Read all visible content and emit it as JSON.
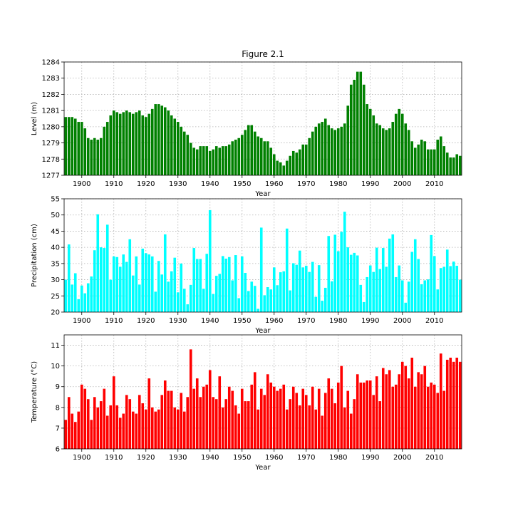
{
  "figure_title": "Figure 2.1",
  "chart_data": [
    {
      "type": "bar",
      "title": "Figure 2.1",
      "xlabel": "Year",
      "ylabel": "Level (m)",
      "color": "#008000",
      "xlim": [
        1895,
        2018
      ],
      "ylim": [
        1277,
        1284
      ],
      "xticks": [
        1900,
        1910,
        1920,
        1930,
        1940,
        1950,
        1960,
        1970,
        1980,
        1990,
        2000,
        2010
      ],
      "yticks": [
        1277,
        1278,
        1279,
        1280,
        1281,
        1282,
        1283,
        1284
      ],
      "grid": true,
      "x": [
        1895,
        1896,
        1897,
        1898,
        1899,
        1900,
        1901,
        1902,
        1903,
        1904,
        1905,
        1906,
        1907,
        1908,
        1909,
        1910,
        1911,
        1912,
        1913,
        1914,
        1915,
        1916,
        1917,
        1918,
        1919,
        1920,
        1921,
        1922,
        1923,
        1924,
        1925,
        1926,
        1927,
        1928,
        1929,
        1930,
        1931,
        1932,
        1933,
        1934,
        1935,
        1936,
        1937,
        1938,
        1939,
        1940,
        1941,
        1942,
        1943,
        1944,
        1945,
        1946,
        1947,
        1948,
        1949,
        1950,
        1951,
        1952,
        1953,
        1954,
        1955,
        1956,
        1957,
        1958,
        1959,
        1960,
        1961,
        1962,
        1963,
        1964,
        1965,
        1966,
        1967,
        1968,
        1969,
        1970,
        1971,
        1972,
        1973,
        1974,
        1975,
        1976,
        1977,
        1978,
        1979,
        1980,
        1981,
        1982,
        1983,
        1984,
        1985,
        1986,
        1987,
        1988,
        1989,
        1990,
        1991,
        1992,
        1993,
        1994,
        1995,
        1996,
        1997,
        1998,
        1999,
        2000,
        2001,
        2002,
        2003,
        2004,
        2005,
        2006,
        2007,
        2008,
        2009,
        2010,
        2011,
        2012,
        2013,
        2014,
        2015,
        2016,
        2017,
        2018
      ],
      "values": [
        1280.6,
        1280.6,
        1280.6,
        1280.5,
        1280.3,
        1280.3,
        1279.9,
        1279.3,
        1279.2,
        1279.3,
        1279.2,
        1279.3,
        1280.0,
        1280.3,
        1280.7,
        1281.0,
        1280.9,
        1280.8,
        1280.9,
        1281.0,
        1280.9,
        1280.8,
        1280.9,
        1281.0,
        1280.7,
        1280.6,
        1280.8,
        1281.1,
        1281.4,
        1281.4,
        1281.3,
        1281.2,
        1281.0,
        1280.7,
        1280.5,
        1280.3,
        1280.0,
        1279.7,
        1279.5,
        1279.0,
        1278.7,
        1278.6,
        1278.8,
        1278.8,
        1278.8,
        1278.5,
        1278.6,
        1278.8,
        1278.7,
        1278.8,
        1278.8,
        1278.9,
        1279.1,
        1279.2,
        1279.3,
        1279.5,
        1279.8,
        1280.1,
        1280.1,
        1279.7,
        1279.4,
        1279.3,
        1279.1,
        1279.1,
        1278.7,
        1278.3,
        1277.9,
        1277.8,
        1277.6,
        1277.9,
        1278.2,
        1278.5,
        1278.4,
        1278.6,
        1278.9,
        1278.9,
        1279.3,
        1279.7,
        1280.0,
        1280.2,
        1280.3,
        1280.5,
        1280.1,
        1279.9,
        1279.8,
        1279.9,
        1280.0,
        1280.2,
        1281.3,
        1282.6,
        1282.9,
        1283.4,
        1283.4,
        1282.6,
        1281.4,
        1281.1,
        1280.7,
        1280.2,
        1280.1,
        1279.9,
        1279.8,
        1279.9,
        1280.3,
        1280.8,
        1281.1,
        1280.8,
        1280.2,
        1279.8,
        1279.1,
        1278.7,
        1278.9,
        1279.2,
        1279.1,
        1278.6,
        1278.6,
        1278.6,
        1279.2,
        1279.4,
        1278.8,
        1278.4,
        1278.1,
        1278.1,
        1278.3,
        1278.2
      ]
    },
    {
      "type": "bar",
      "title": "",
      "xlabel": "Year",
      "ylabel": "Precipitation (cm)",
      "color": "#00ffff",
      "xlim": [
        1895,
        2018
      ],
      "ylim": [
        20,
        55
      ],
      "xticks": [
        1900,
        1910,
        1920,
        1930,
        1940,
        1950,
        1960,
        1970,
        1980,
        1990,
        2000,
        2010
      ],
      "yticks": [
        20,
        25,
        30,
        35,
        40,
        45,
        50,
        55
      ],
      "grid": true,
      "x": [
        1895,
        1896,
        1897,
        1898,
        1899,
        1900,
        1901,
        1902,
        1903,
        1904,
        1905,
        1906,
        1907,
        1908,
        1909,
        1910,
        1911,
        1912,
        1913,
        1914,
        1915,
        1916,
        1917,
        1918,
        1919,
        1920,
        1921,
        1922,
        1923,
        1924,
        1925,
        1926,
        1927,
        1928,
        1929,
        1930,
        1931,
        1932,
        1933,
        1934,
        1935,
        1936,
        1937,
        1938,
        1939,
        1940,
        1941,
        1942,
        1943,
        1944,
        1945,
        1946,
        1947,
        1948,
        1949,
        1950,
        1951,
        1952,
        1953,
        1954,
        1955,
        1956,
        1957,
        1958,
        1959,
        1960,
        1961,
        1962,
        1963,
        1964,
        1965,
        1966,
        1967,
        1968,
        1969,
        1970,
        1971,
        1972,
        1973,
        1974,
        1975,
        1976,
        1977,
        1978,
        1979,
        1980,
        1981,
        1982,
        1983,
        1984,
        1985,
        1986,
        1987,
        1988,
        1989,
        1990,
        1991,
        1992,
        1993,
        1994,
        1995,
        1996,
        1997,
        1998,
        1999,
        2000,
        2001,
        2002,
        2003,
        2004,
        2005,
        2006,
        2007,
        2008,
        2009,
        2010,
        2011,
        2012,
        2013,
        2014,
        2015,
        2016,
        2017,
        2018
      ],
      "values": [
        30.0,
        40.9,
        28.5,
        32.0,
        24.0,
        28.2,
        25.8,
        28.9,
        31.0,
        39.1,
        50.2,
        40.0,
        39.8,
        47.0,
        30.0,
        37.2,
        37.0,
        34.0,
        37.8,
        35.5,
        42.5,
        31.3,
        37.2,
        28.5,
        39.6,
        38.2,
        37.8,
        37.2,
        26.3,
        35.8,
        31.6,
        44.0,
        29.4,
        32.6,
        36.8,
        26.1,
        35.0,
        27.2,
        22.4,
        28.4,
        39.8,
        36.4,
        36.4,
        27.2,
        38.0,
        51.5,
        25.6,
        31.2,
        31.8,
        37.3,
        36.5,
        37.0,
        29.8,
        37.6,
        24.3,
        37.2,
        32.1,
        26.5,
        29.4,
        28.1,
        21.0,
        46.1,
        25.2,
        27.7,
        27.0,
        33.8,
        28.3,
        32.3,
        32.6,
        45.8,
        26.7,
        35.1,
        34.6,
        39.0,
        33.8,
        34.3,
        32.4,
        35.5,
        24.7,
        34.5,
        23.5,
        27.5,
        43.5,
        29.5,
        43.9,
        38.8,
        44.8,
        51.0,
        40.0,
        37.7,
        38.3,
        37.5,
        28.4,
        23.1,
        30.8,
        34.4,
        32.4,
        39.9,
        33.3,
        39.8,
        34.0,
        42.7,
        44.0,
        30.8,
        34.4,
        29.8,
        22.9,
        29.4,
        38.6,
        42.5,
        36.4,
        28.6,
        29.8,
        30.1,
        43.8,
        37.3,
        27.0,
        33.6,
        34.0,
        39.3,
        34.2,
        35.6,
        34.3,
        30.0
      ]
    },
    {
      "type": "bar",
      "title": "",
      "xlabel": "Year",
      "ylabel": "Temperature (°C)",
      "color": "#ff0000",
      "xlim": [
        1895,
        2018
      ],
      "ylim": [
        6,
        11.5
      ],
      "xticks": [
        1900,
        1910,
        1920,
        1930,
        1940,
        1950,
        1960,
        1970,
        1980,
        1990,
        2000,
        2010
      ],
      "yticks": [
        6,
        7,
        8,
        9,
        10,
        11
      ],
      "grid": true,
      "x": [
        1895,
        1896,
        1897,
        1898,
        1899,
        1900,
        1901,
        1902,
        1903,
        1904,
        1905,
        1906,
        1907,
        1908,
        1909,
        1910,
        1911,
        1912,
        1913,
        1914,
        1915,
        1916,
        1917,
        1918,
        1919,
        1920,
        1921,
        1922,
        1923,
        1924,
        1925,
        1926,
        1927,
        1928,
        1929,
        1930,
        1931,
        1932,
        1933,
        1934,
        1935,
        1936,
        1937,
        1938,
        1939,
        1940,
        1941,
        1942,
        1943,
        1944,
        1945,
        1946,
        1947,
        1948,
        1949,
        1950,
        1951,
        1952,
        1953,
        1954,
        1955,
        1956,
        1957,
        1958,
        1959,
        1960,
        1961,
        1962,
        1963,
        1964,
        1965,
        1966,
        1967,
        1968,
        1969,
        1970,
        1971,
        1972,
        1973,
        1974,
        1975,
        1976,
        1977,
        1978,
        1979,
        1980,
        1981,
        1982,
        1983,
        1984,
        1985,
        1986,
        1987,
        1988,
        1989,
        1990,
        1991,
        1992,
        1993,
        1994,
        1995,
        1996,
        1997,
        1998,
        1999,
        2000,
        2001,
        2002,
        2003,
        2004,
        2005,
        2006,
        2007,
        2008,
        2009,
        2010,
        2011,
        2012,
        2013,
        2014,
        2015,
        2016,
        2017,
        2018
      ],
      "values": [
        7.4,
        8.5,
        7.7,
        7.3,
        7.8,
        9.1,
        8.9,
        8.4,
        7.4,
        8.5,
        8.0,
        8.3,
        8.9,
        7.6,
        8.1,
        9.5,
        8.1,
        7.5,
        7.7,
        8.6,
        8.4,
        7.8,
        7.7,
        8.6,
        8.2,
        7.9,
        9.4,
        8.0,
        7.8,
        7.9,
        8.6,
        9.3,
        8.8,
        8.8,
        8.0,
        7.9,
        8.7,
        7.8,
        8.5,
        10.8,
        8.9,
        9.4,
        8.5,
        9.0,
        9.1,
        9.8,
        8.5,
        8.4,
        9.5,
        8.0,
        8.4,
        9.0,
        8.8,
        8.1,
        7.7,
        8.9,
        8.3,
        8.3,
        9.1,
        9.7,
        7.9,
        8.9,
        8.6,
        9.6,
        9.2,
        9.0,
        8.8,
        8.9,
        9.1,
        7.9,
        8.4,
        9.0,
        8.7,
        8.1,
        8.9,
        8.6,
        8.1,
        9.0,
        7.9,
        8.9,
        7.6,
        8.7,
        9.4,
        8.9,
        8.2,
        9.2,
        10.0,
        8.0,
        8.8,
        7.7,
        8.4,
        9.6,
        9.2,
        9.2,
        9.3,
        9.3,
        8.6,
        9.5,
        8.3,
        9.9,
        9.6,
        9.8,
        9.0,
        9.1,
        9.6,
        10.2,
        10.0,
        9.4,
        10.4,
        9.0,
        9.7,
        9.6,
        10.0,
        9.0,
        9.2,
        9.1,
        8.7,
        10.6,
        8.8,
        10.3,
        10.4,
        10.2,
        10.4,
        10.2
      ]
    }
  ]
}
